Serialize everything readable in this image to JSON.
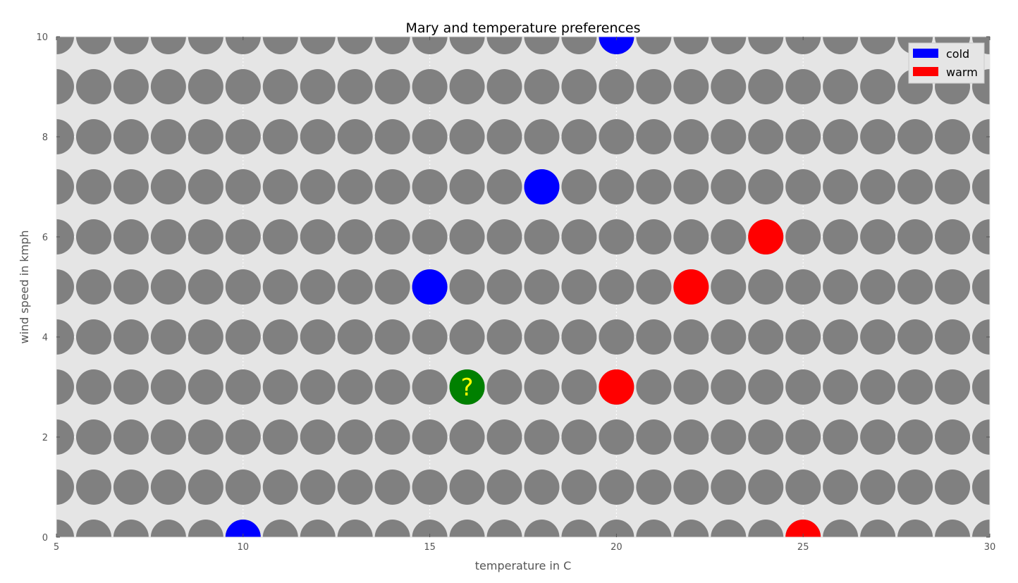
{
  "chart_data": {
    "type": "scatter",
    "title": "Mary and temperature preferences",
    "xlabel": "temperature in C",
    "ylabel": "wind speed in kmph",
    "xlim": [
      5,
      30
    ],
    "ylim": [
      0,
      10
    ],
    "x_ticks": [
      5,
      10,
      15,
      20,
      25,
      30
    ],
    "y_ticks": [
      0,
      2,
      4,
      6,
      8,
      10
    ],
    "grid": true,
    "legend_position": "top-right",
    "background_color": "#e5e5e5",
    "background_points": {
      "x_range": [
        5,
        30
      ],
      "y_range": [
        0,
        10
      ],
      "step": 1,
      "color": "#808080"
    },
    "series": [
      {
        "name": "cold",
        "color": "#0000ff",
        "points": [
          {
            "x": 10,
            "y": 0
          },
          {
            "x": 15,
            "y": 5
          },
          {
            "x": 18,
            "y": 7
          },
          {
            "x": 20,
            "y": 10
          }
        ]
      },
      {
        "name": "warm",
        "color": "#ff0000",
        "points": [
          {
            "x": 20,
            "y": 3
          },
          {
            "x": 22,
            "y": 5
          },
          {
            "x": 24,
            "y": 6
          },
          {
            "x": 25,
            "y": 0
          }
        ]
      }
    ],
    "query_point": {
      "x": 16,
      "y": 3,
      "color": "#008000",
      "label": "?",
      "label_color": "#ffff00"
    }
  }
}
